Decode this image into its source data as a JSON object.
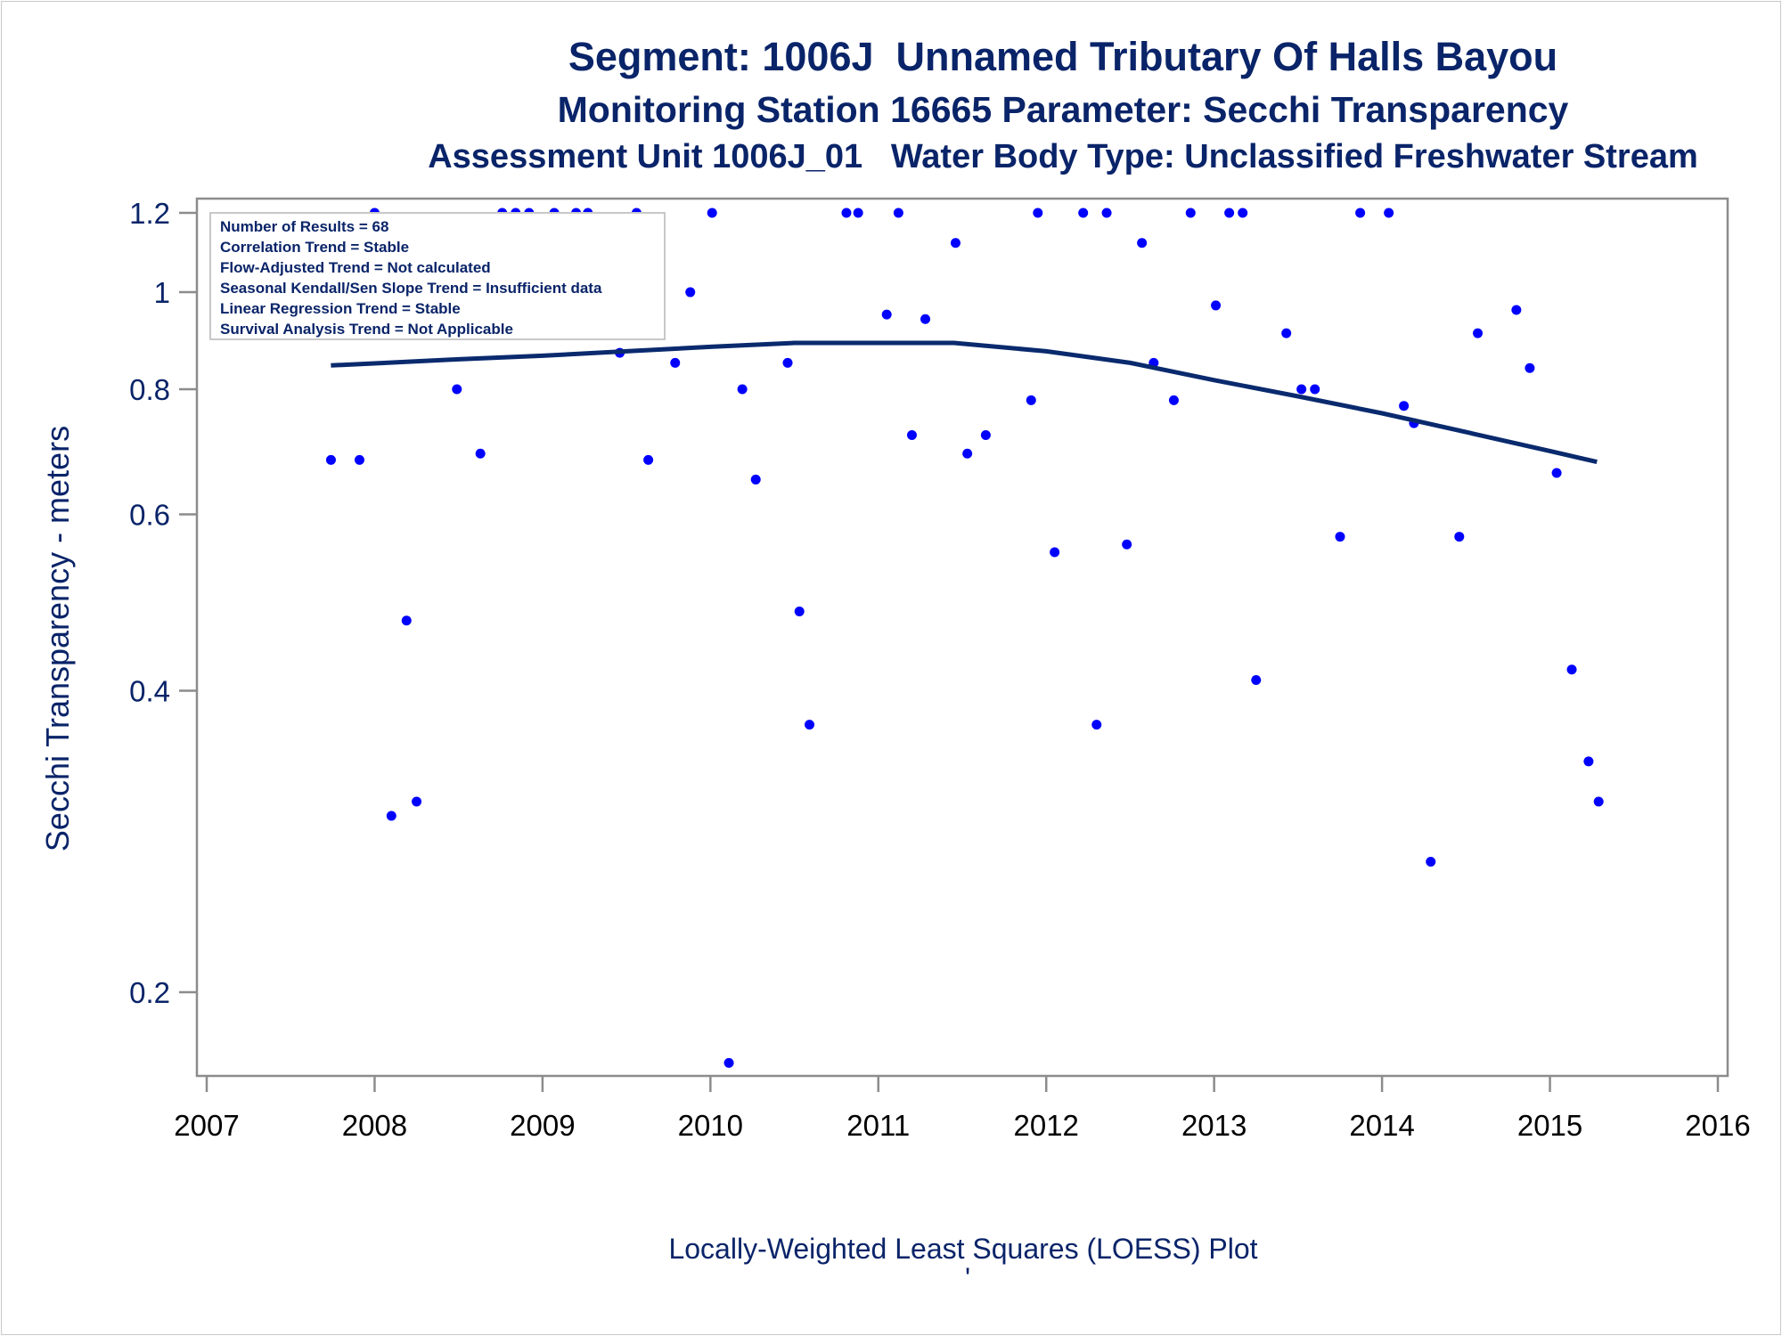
{
  "titles": {
    "line1": "Segment: 1006J  Unnamed Tributary Of Halls Bayou",
    "line2": "Monitoring Station 16665 Parameter: Secchi Transparency",
    "line3": "Assessment Unit 1006J_01   Water Body Type: Unclassified Freshwater Stream"
  },
  "stats_box": [
    "Number of Results = 68",
    "Correlation Trend = Stable",
    "Flow-Adjusted Trend = Not calculated",
    "Seasonal Kendall/Sen Slope Trend = Insufficient data",
    "Linear Regression Trend = Stable",
    "Survival Analysis Trend = Not Applicable"
  ],
  "footnote": "Locally-Weighted Least Squares (LOESS) Plot",
  "footnote_mark": "'",
  "colors": {
    "points": "#0000ff",
    "loess": "#0a2a6e",
    "text": "#0a2469",
    "axis": "#8c8c8c"
  },
  "chart_data": {
    "type": "scatter",
    "title": "Segment: 1006J  Unnamed Tributary Of Halls Bayou",
    "xlabel": "",
    "ylabel": "Secchi Transparency - meters",
    "y_scale": "log",
    "xlim": [
      2007,
      2016
    ],
    "ylim": [
      0.165,
      1.24
    ],
    "x_ticks": [
      2007,
      2008,
      2009,
      2010,
      2011,
      2012,
      2013,
      2014,
      2015,
      2016
    ],
    "y_ticks": [
      0.2,
      0.4,
      0.6,
      0.8,
      1,
      1.2
    ],
    "y_tick_labels": [
      "0.2",
      "0.4",
      "0.6",
      "0.8",
      "1",
      "1.2"
    ],
    "grid": false,
    "legend": "none",
    "series": [
      {
        "type": "scatter",
        "points": [
          [
            2007.74,
            0.68
          ],
          [
            2007.8,
            1.12
          ],
          [
            2007.91,
            0.68
          ],
          [
            2008.0,
            1.2
          ],
          [
            2008.1,
            0.3
          ],
          [
            2008.19,
            0.47
          ],
          [
            2008.25,
            0.31
          ],
          [
            2008.49,
            0.8
          ],
          [
            2008.63,
            0.69
          ],
          [
            2008.76,
            1.2
          ],
          [
            2008.84,
            1.2
          ],
          [
            2008.92,
            1.2
          ],
          [
            2009.07,
            1.2
          ],
          [
            2009.2,
            1.2
          ],
          [
            2009.27,
            1.2
          ],
          [
            2009.46,
            0.87
          ],
          [
            2009.56,
            1.2
          ],
          [
            2009.63,
            0.68
          ],
          [
            2009.79,
            0.85
          ],
          [
            2009.88,
            1.0
          ],
          [
            2010.01,
            1.2
          ],
          [
            2010.11,
            0.17
          ],
          [
            2010.19,
            0.8
          ],
          [
            2010.27,
            0.65
          ],
          [
            2010.46,
            0.85
          ],
          [
            2010.53,
            0.48
          ],
          [
            2010.59,
            0.37
          ],
          [
            2010.81,
            1.2
          ],
          [
            2010.88,
            1.2
          ],
          [
            2011.05,
            0.95
          ],
          [
            2011.12,
            1.2
          ],
          [
            2011.2,
            0.72
          ],
          [
            2011.28,
            0.94
          ],
          [
            2011.46,
            1.12
          ],
          [
            2011.53,
            0.69
          ],
          [
            2011.64,
            0.72
          ],
          [
            2011.91,
            0.78
          ],
          [
            2011.95,
            1.2
          ],
          [
            2012.05,
            0.55
          ],
          [
            2012.22,
            1.2
          ],
          [
            2012.3,
            0.37
          ],
          [
            2012.36,
            1.2
          ],
          [
            2012.48,
            0.56
          ],
          [
            2012.57,
            1.12
          ],
          [
            2012.64,
            0.85
          ],
          [
            2012.76,
            0.78
          ],
          [
            2012.86,
            1.2
          ],
          [
            2013.01,
            0.97
          ],
          [
            2013.09,
            1.2
          ],
          [
            2013.17,
            1.2
          ],
          [
            2013.25,
            0.41
          ],
          [
            2013.43,
            0.91
          ],
          [
            2013.52,
            0.8
          ],
          [
            2013.6,
            0.8
          ],
          [
            2013.75,
            0.57
          ],
          [
            2013.87,
            1.2
          ],
          [
            2014.04,
            1.2
          ],
          [
            2014.13,
            0.77
          ],
          [
            2014.19,
            0.74
          ],
          [
            2014.29,
            0.27
          ],
          [
            2014.46,
            0.57
          ],
          [
            2014.57,
            0.91
          ],
          [
            2014.8,
            0.96
          ],
          [
            2014.88,
            0.84
          ],
          [
            2015.04,
            0.66
          ],
          [
            2015.13,
            0.42
          ],
          [
            2015.23,
            0.34
          ],
          [
            2015.29,
            0.31
          ]
        ]
      },
      {
        "type": "line",
        "points": [
          [
            2007.74,
            0.845
          ],
          [
            2008.0,
            0.849
          ],
          [
            2008.5,
            0.857
          ],
          [
            2009.0,
            0.864
          ],
          [
            2009.5,
            0.873
          ],
          [
            2010.0,
            0.882
          ],
          [
            2010.5,
            0.89
          ],
          [
            2011.0,
            0.89
          ],
          [
            2011.45,
            0.89
          ],
          [
            2012.0,
            0.873
          ],
          [
            2012.5,
            0.85
          ],
          [
            2013.0,
            0.817
          ],
          [
            2013.5,
            0.787
          ],
          [
            2014.0,
            0.757
          ],
          [
            2014.5,
            0.725
          ],
          [
            2015.0,
            0.694
          ],
          [
            2015.28,
            0.677
          ]
        ]
      }
    ]
  }
}
